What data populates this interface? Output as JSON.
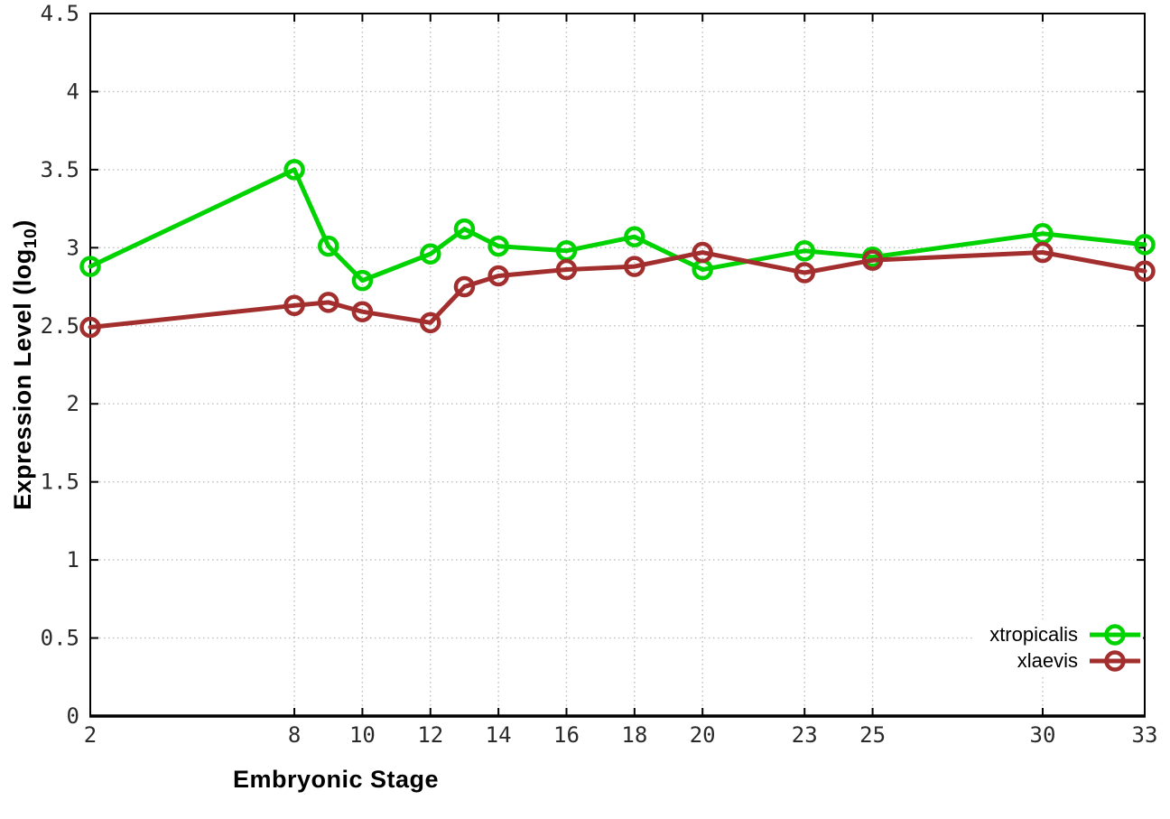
{
  "chart_data": {
    "type": "line",
    "title": "",
    "xlabel": "Embryonic Stage",
    "ylabel_prefix": "Expression Level (log",
    "ylabel_sub": "10",
    "ylabel_suffix": ")",
    "xlim": [
      2,
      33
    ],
    "ylim": [
      0,
      4.5
    ],
    "grid": true,
    "legend_position": "inside-bottom-right",
    "xticks": [
      2,
      8,
      10,
      12,
      14,
      16,
      18,
      20,
      23,
      25,
      30,
      33
    ],
    "xtick_labels": [
      "2",
      "8",
      "10",
      "12",
      "14",
      "16",
      "18",
      "20",
      "23",
      "25",
      "30",
      "33"
    ],
    "yticks": [
      0,
      0.5,
      1,
      1.5,
      2,
      2.5,
      3,
      3.5,
      4,
      4.5
    ],
    "ytick_labels": [
      "0",
      "0.5",
      "1",
      "1.5",
      "2",
      "2.5",
      "3",
      "3.5",
      "4",
      "4.5"
    ],
    "x": [
      2,
      8,
      9,
      10,
      12,
      13,
      14,
      16,
      18,
      20,
      23,
      25,
      30,
      33
    ],
    "series": [
      {
        "name": "xtropicalis",
        "color": "#00d300",
        "values": [
          2.88,
          3.5,
          3.01,
          2.79,
          2.96,
          3.12,
          3.01,
          2.98,
          3.07,
          2.86,
          2.98,
          2.94,
          3.09,
          3.02
        ]
      },
      {
        "name": "xlaevis",
        "color": "#a32e2e",
        "values": [
          2.49,
          2.63,
          2.65,
          2.59,
          2.52,
          2.75,
          2.82,
          2.86,
          2.88,
          2.97,
          2.84,
          2.92,
          2.97,
          2.85
        ]
      }
    ],
    "colors": {
      "grid": "#bdbdbd",
      "border": "#000000",
      "tick_label": "#2a2a2a",
      "background": "#ffffff"
    }
  }
}
